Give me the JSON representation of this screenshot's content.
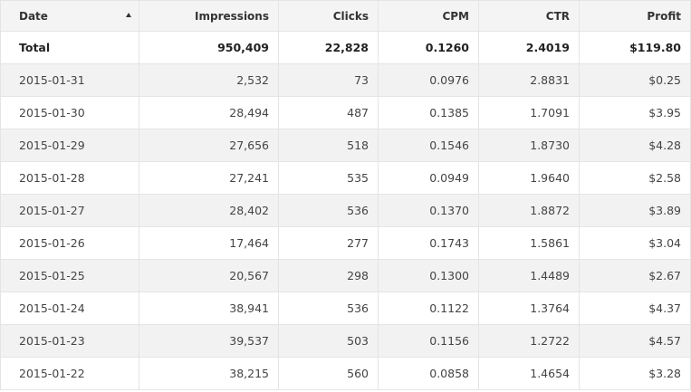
{
  "table": {
    "headers": {
      "date": "Date",
      "impressions": "Impressions",
      "clicks": "Clicks",
      "cpm": "CPM",
      "ctr": "CTR",
      "profit": "Profit"
    },
    "sort": {
      "column": "date",
      "direction": "ascending-icon"
    },
    "total": {
      "label": "Total",
      "impressions": "950,409",
      "clicks": "22,828",
      "cpm": "0.1260",
      "ctr": "2.4019",
      "profit": "$119.80"
    },
    "rows": [
      {
        "date": "2015-01-31",
        "impressions": "2,532",
        "clicks": "73",
        "cpm": "0.0976",
        "ctr": "2.8831",
        "profit": "$0.25"
      },
      {
        "date": "2015-01-30",
        "impressions": "28,494",
        "clicks": "487",
        "cpm": "0.1385",
        "ctr": "1.7091",
        "profit": "$3.95"
      },
      {
        "date": "2015-01-29",
        "impressions": "27,656",
        "clicks": "518",
        "cpm": "0.1546",
        "ctr": "1.8730",
        "profit": "$4.28"
      },
      {
        "date": "2015-01-28",
        "impressions": "27,241",
        "clicks": "535",
        "cpm": "0.0949",
        "ctr": "1.9640",
        "profit": "$2.58"
      },
      {
        "date": "2015-01-27",
        "impressions": "28,402",
        "clicks": "536",
        "cpm": "0.1370",
        "ctr": "1.8872",
        "profit": "$3.89"
      },
      {
        "date": "2015-01-26",
        "impressions": "17,464",
        "clicks": "277",
        "cpm": "0.1743",
        "ctr": "1.5861",
        "profit": "$3.04"
      },
      {
        "date": "2015-01-25",
        "impressions": "20,567",
        "clicks": "298",
        "cpm": "0.1300",
        "ctr": "1.4489",
        "profit": "$2.67"
      },
      {
        "date": "2015-01-24",
        "impressions": "38,941",
        "clicks": "536",
        "cpm": "0.1122",
        "ctr": "1.3764",
        "profit": "$4.37"
      },
      {
        "date": "2015-01-23",
        "impressions": "39,537",
        "clicks": "503",
        "cpm": "0.1156",
        "ctr": "1.2722",
        "profit": "$4.57"
      },
      {
        "date": "2015-01-22",
        "impressions": "38,215",
        "clicks": "560",
        "cpm": "0.0858",
        "ctr": "1.4654",
        "profit": "$3.28"
      }
    ]
  }
}
